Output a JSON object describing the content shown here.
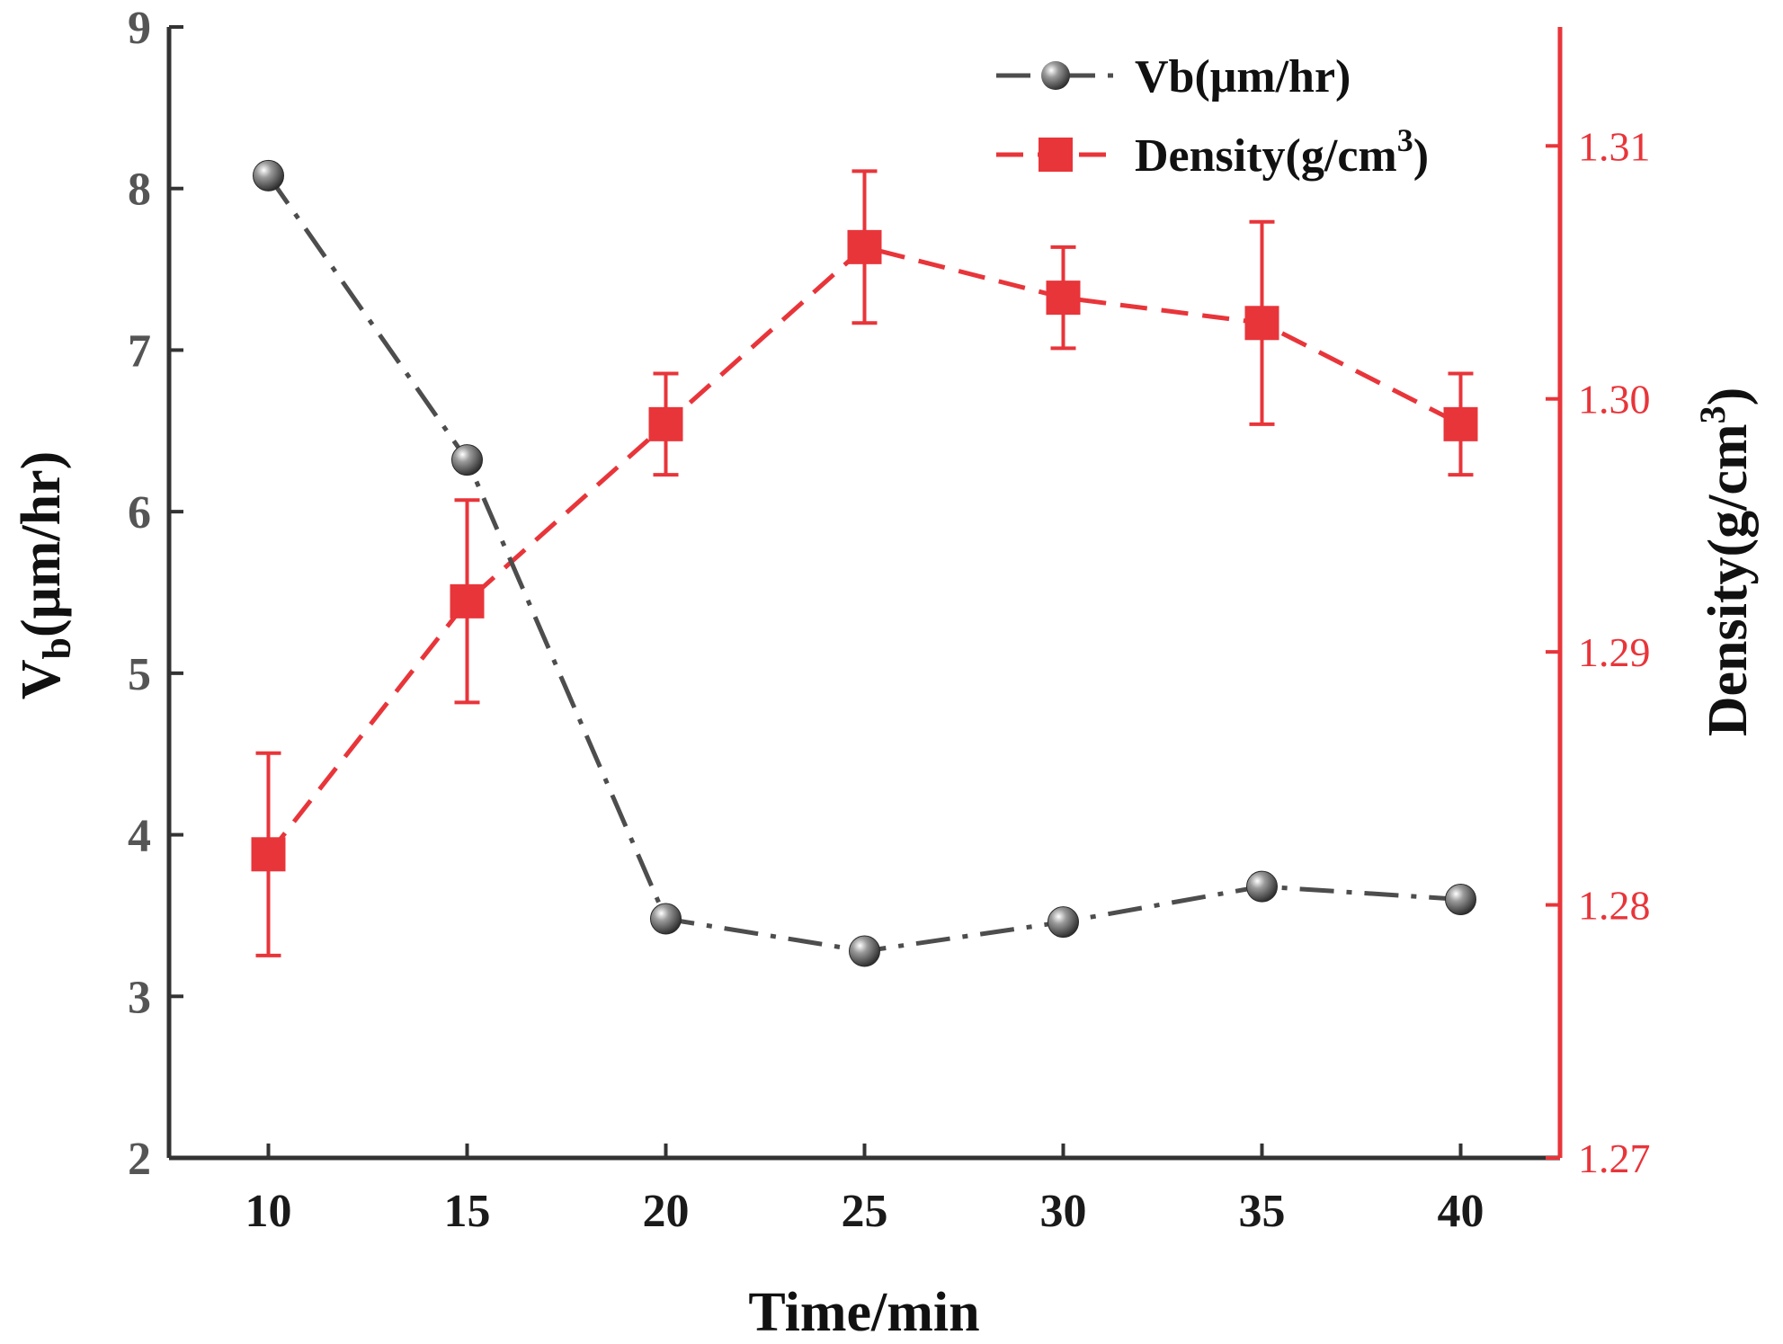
{
  "colors": {
    "vb_series": "#4d4d4d",
    "density_series": "#e8353a",
    "left_axis": "#333333",
    "right_axis": "#e8353a",
    "background": "#ffffff"
  },
  "chart_data": {
    "type": "line",
    "xlabel": "Time/min",
    "ylabel_left": {
      "main": "V",
      "sub": "b",
      "rest": "(μm/hr)"
    },
    "ylabel_right": {
      "main": "Density(g/cm",
      "sup": "3",
      "rest": ")"
    },
    "x": [
      10,
      15,
      20,
      25,
      30,
      35,
      40
    ],
    "xlim": [
      7.5,
      42.5
    ],
    "xticks": [
      10,
      15,
      20,
      25,
      30,
      35,
      40
    ],
    "ylim_left": [
      2,
      9
    ],
    "yticks_left": [
      2,
      3,
      4,
      5,
      6,
      7,
      8,
      9
    ],
    "ylim_right": [
      1.27,
      1.3147
    ],
    "yticks_right": [
      "1.27",
      "1.28",
      "1.29",
      "1.30",
      "1.31"
    ],
    "legend_position": "top-right",
    "grid": false,
    "series": [
      {
        "name": "Vb(μm/hr)",
        "axis": "left",
        "marker": "sphere",
        "line_style": "dash-dot",
        "values": [
          8.08,
          6.32,
          3.48,
          3.28,
          3.46,
          3.68,
          3.6
        ]
      },
      {
        "name": "Density(g/cm³)",
        "legend_label": {
          "main": "Density(g/cm",
          "sup": "3",
          "rest": ")"
        },
        "axis": "right",
        "marker": "square",
        "line_style": "dashed",
        "values": [
          1.282,
          1.292,
          1.299,
          1.306,
          1.304,
          1.303,
          1.299
        ],
        "error": [
          0.004,
          0.004,
          0.002,
          0.003,
          0.002,
          0.004,
          0.002
        ]
      }
    ]
  }
}
